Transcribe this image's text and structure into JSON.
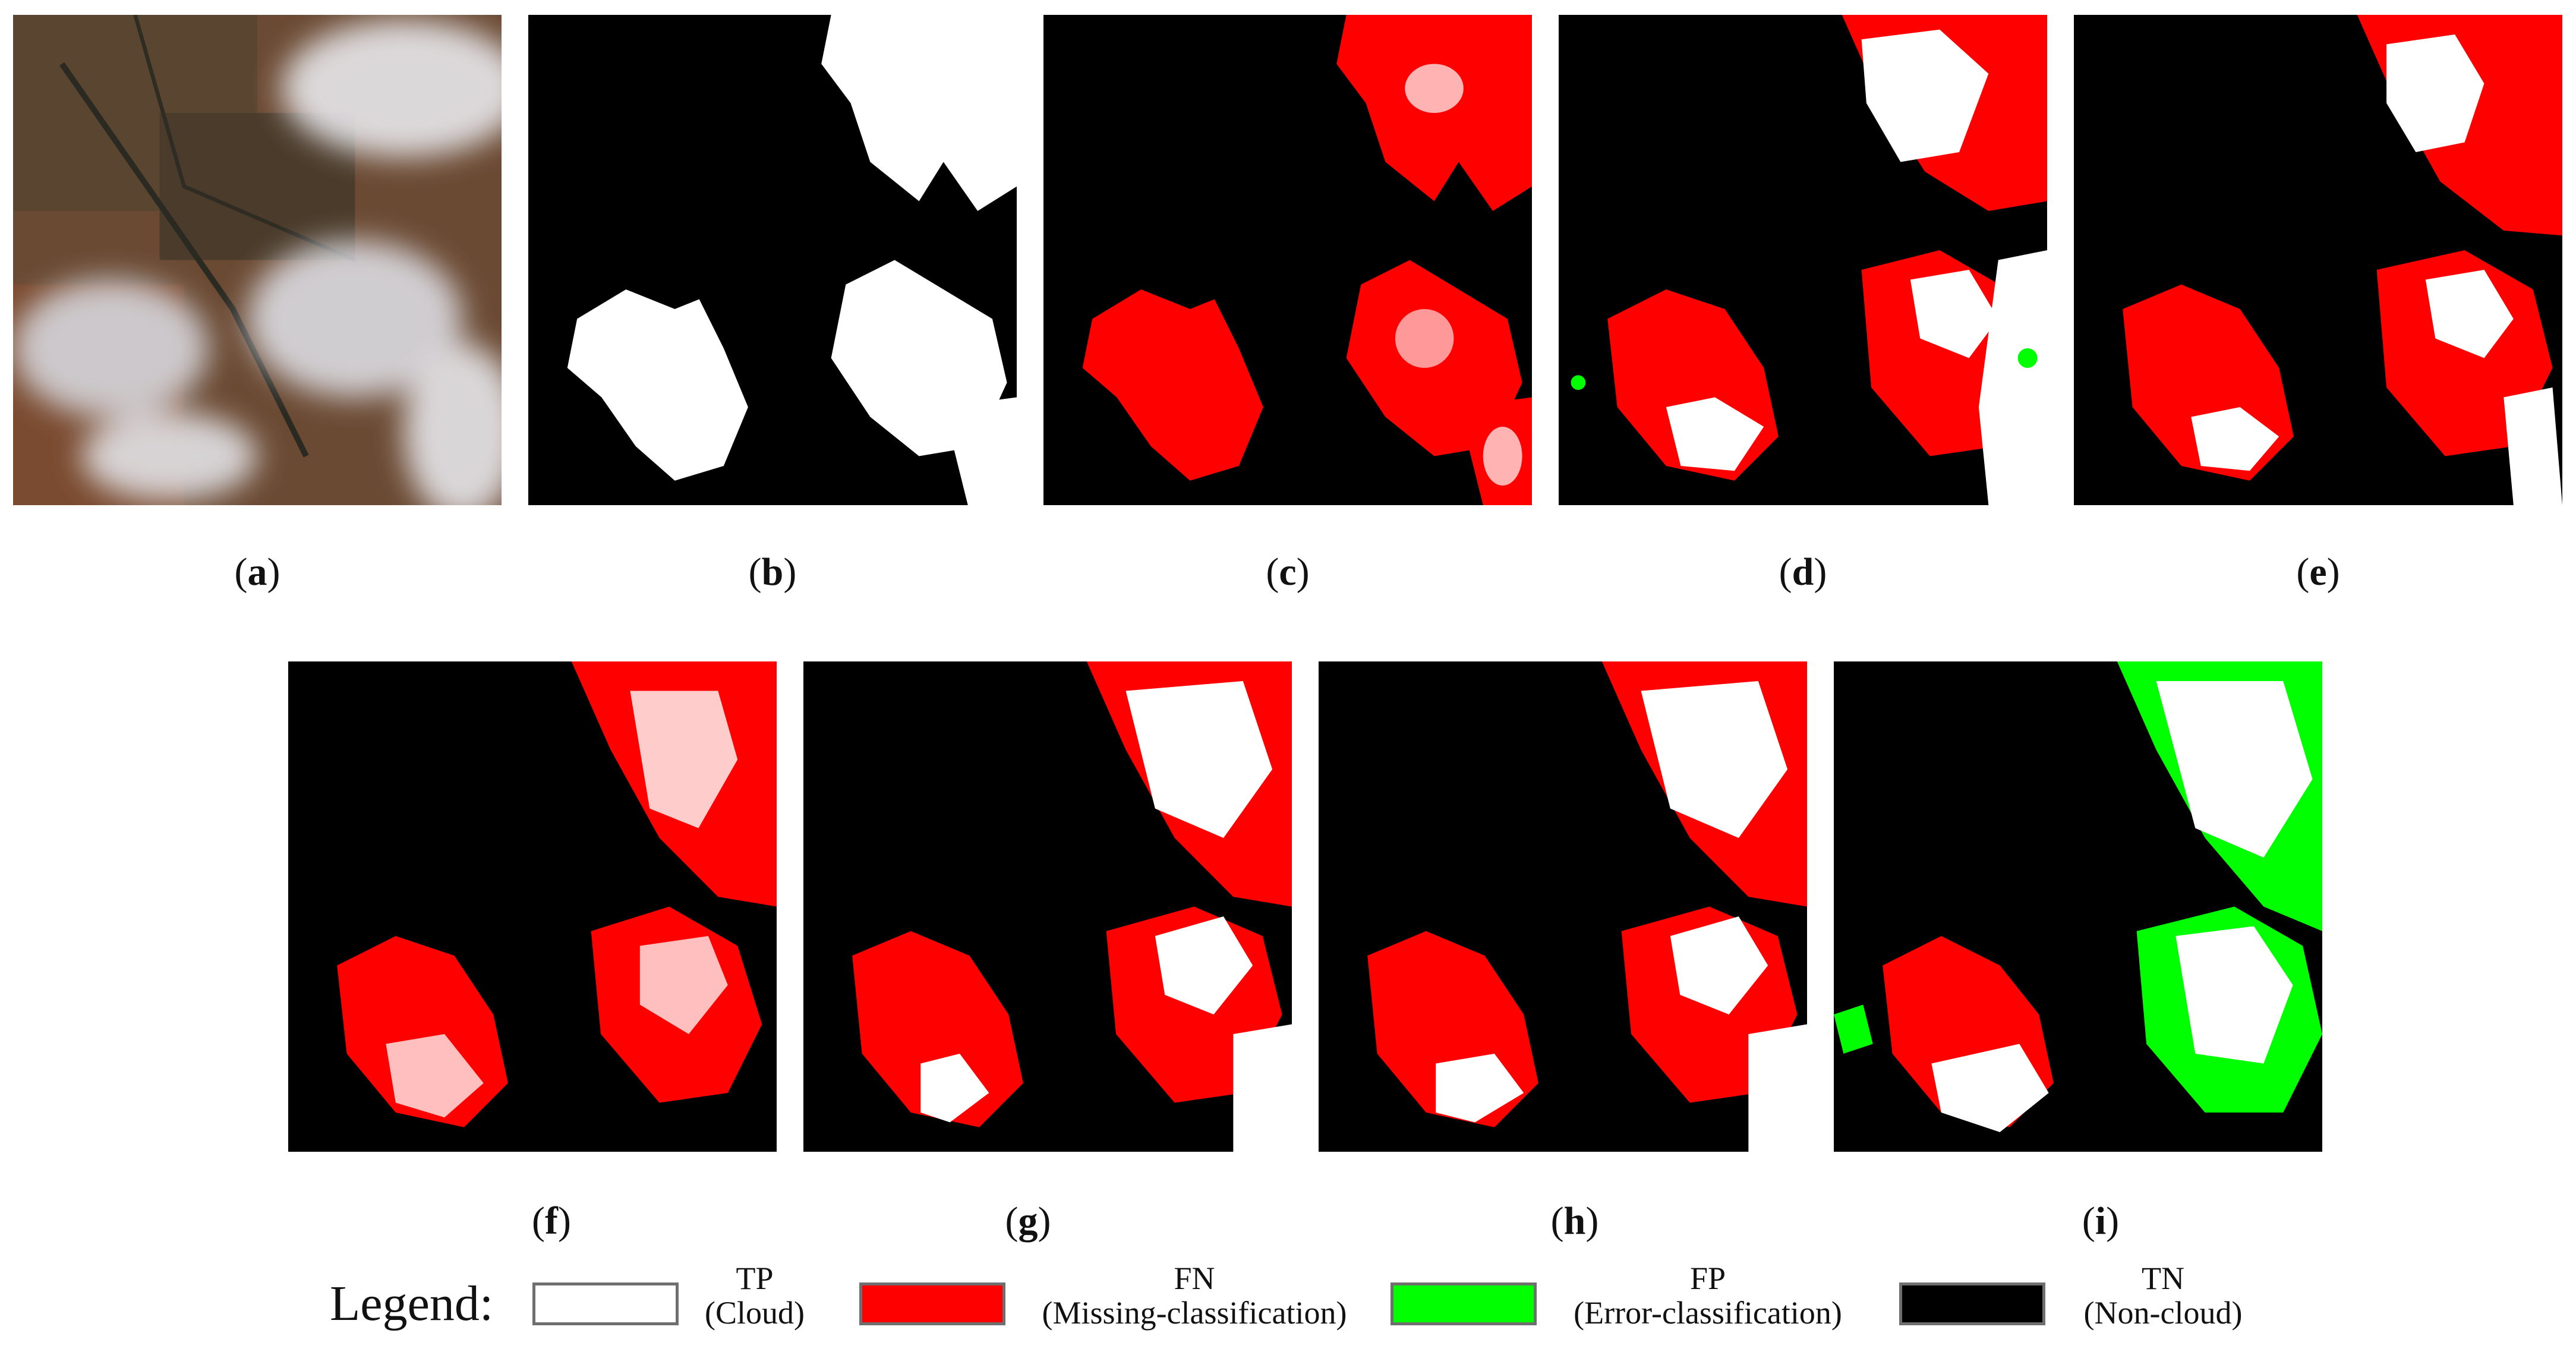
{
  "colors": {
    "tp": "#ffffff",
    "fn": "#ff0000",
    "fp": "#00ff00",
    "tn": "#000000"
  },
  "panels": [
    {
      "id": "a",
      "label": "a",
      "kind": "satellite-rgb"
    },
    {
      "id": "b",
      "label": "b",
      "kind": "ground-truth"
    },
    {
      "id": "c",
      "label": "c",
      "kind": "result"
    },
    {
      "id": "d",
      "label": "d",
      "kind": "result"
    },
    {
      "id": "e",
      "label": "e",
      "kind": "result"
    },
    {
      "id": "f",
      "label": "f",
      "kind": "result"
    },
    {
      "id": "g",
      "label": "g",
      "kind": "result"
    },
    {
      "id": "h",
      "label": "h",
      "kind": "result"
    },
    {
      "id": "i",
      "label": "i",
      "kind": "result"
    }
  ],
  "legend": {
    "title": "Legend:",
    "items": [
      {
        "code": "TP",
        "desc": "(Cloud)",
        "color": "#ffffff"
      },
      {
        "code": "FN",
        "desc": "(Missing-classification)",
        "color": "#ff0000"
      },
      {
        "code": "FP",
        "desc": "(Error-classification)",
        "color": "#00ff00"
      },
      {
        "code": "TN",
        "desc": "(Non-cloud)",
        "color": "#000000"
      }
    ]
  }
}
